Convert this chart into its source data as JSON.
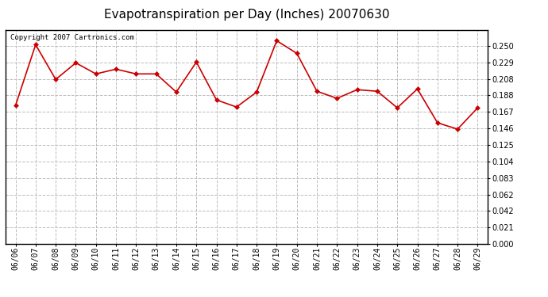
{
  "title": "Evapotranspiration per Day (Inches) 20070630",
  "copyright_text": "Copyright 2007 Cartronics.com",
  "dates": [
    "06/06",
    "06/07",
    "06/08",
    "06/09",
    "06/10",
    "06/11",
    "06/12",
    "06/13",
    "06/14",
    "06/15",
    "06/16",
    "06/17",
    "06/18",
    "06/19",
    "06/20",
    "06/21",
    "06/22",
    "06/23",
    "06/24",
    "06/25",
    "06/26",
    "06/27",
    "06/28",
    "06/29"
  ],
  "values": [
    0.175,
    0.252,
    0.208,
    0.229,
    0.215,
    0.221,
    0.215,
    0.215,
    0.192,
    0.23,
    0.182,
    0.173,
    0.192,
    0.257,
    0.241,
    0.193,
    0.184,
    0.195,
    0.193,
    0.172,
    0.196,
    0.153,
    0.145,
    0.172
  ],
  "line_color": "#cc0000",
  "marker": "D",
  "marker_size": 3,
  "background_color": "#ffffff",
  "plot_bg_color": "#ffffff",
  "grid_color": "#bbbbbb",
  "grid_style": "--",
  "ylim": [
    0.0,
    0.271
  ],
  "yticks": [
    0.0,
    0.021,
    0.042,
    0.062,
    0.083,
    0.104,
    0.125,
    0.146,
    0.167,
    0.188,
    0.208,
    0.229,
    0.25
  ],
  "title_fontsize": 11,
  "tick_fontsize": 7,
  "copyright_fontsize": 6.5,
  "border_color": "#000000",
  "border_width": 1.0
}
